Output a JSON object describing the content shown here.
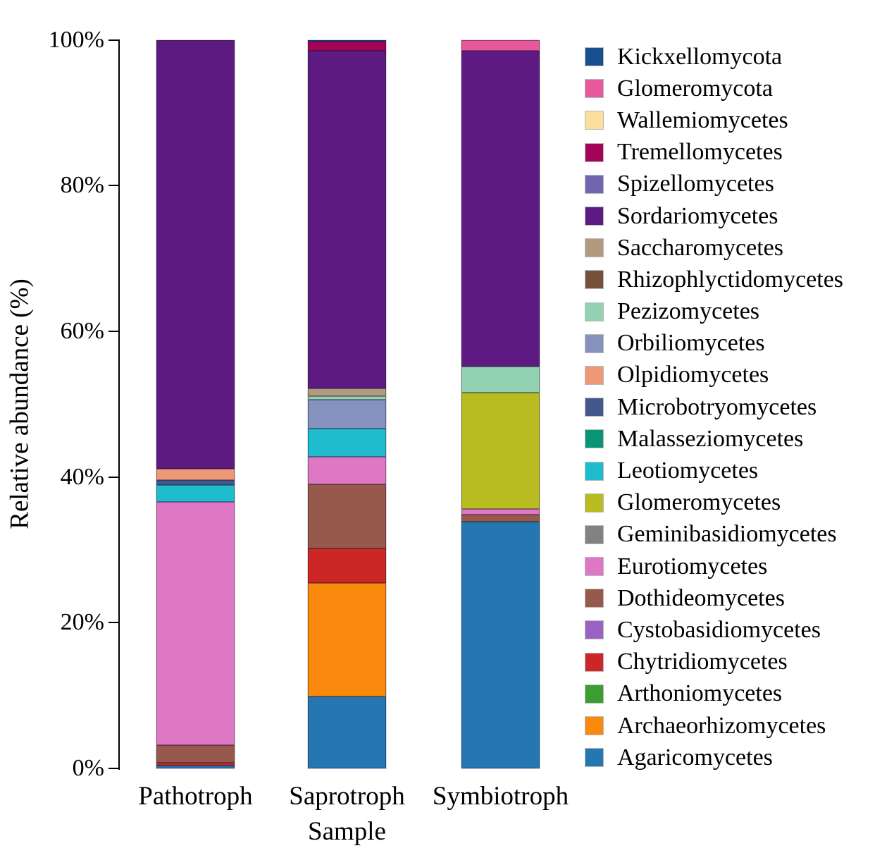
{
  "figure": {
    "y_axis_title": "Relative abundance (%)",
    "x_axis_title": "Sample"
  },
  "chart_data": {
    "type": "bar",
    "subtype": "stacked-percentage",
    "title": "",
    "xlabel": "Sample",
    "ylabel": "Relative abundance (%)",
    "ylim": [
      0,
      100
    ],
    "grid": false,
    "legend_position": "right",
    "y_ticks": [
      {
        "value": 0,
        "label": "0%"
      },
      {
        "value": 20,
        "label": "20%"
      },
      {
        "value": 40,
        "label": "40%"
      },
      {
        "value": 60,
        "label": "60%"
      },
      {
        "value": 80,
        "label": "80%"
      },
      {
        "value": 100,
        "label": "100%"
      }
    ],
    "categories": [
      "Pathotroph",
      "Saprotroph",
      "Symbiotroph"
    ],
    "stack_order_note": "series listed bottom-to-top of each stacked bar; legend shows reverse order (top-to-bottom)",
    "series": [
      {
        "name": "Agaricomycetes",
        "color": "#2577b2",
        "values": [
          0.4,
          9.9,
          33.9
        ]
      },
      {
        "name": "Archaeorhizomycetes",
        "color": "#f98a0d",
        "values": [
          0,
          15.6,
          0
        ]
      },
      {
        "name": "Arthoniomycetes",
        "color": "#3a9e33",
        "values": [
          0,
          0,
          0
        ]
      },
      {
        "name": "Chytridiomycetes",
        "color": "#cd2627",
        "values": [
          0.35,
          4.7,
          0
        ]
      },
      {
        "name": "Cystobasidiomycetes",
        "color": "#9a63c3",
        "values": [
          0,
          0,
          0
        ]
      },
      {
        "name": "Dothideomycetes",
        "color": "#96594b",
        "values": [
          2.4,
          8.8,
          0.9
        ]
      },
      {
        "name": "Eurotiomycetes",
        "color": "#de77c4",
        "values": [
          33.45,
          3.8,
          0.8
        ]
      },
      {
        "name": "Geminibasidiomycetes",
        "color": "#828282",
        "values": [
          0,
          0,
          0
        ]
      },
      {
        "name": "Glomeromycetes",
        "color": "#b8bc21",
        "values": [
          0,
          0,
          16.0
        ]
      },
      {
        "name": "Leotiomycetes",
        "color": "#1fbcce",
        "values": [
          2.3,
          3.9,
          0
        ]
      },
      {
        "name": "Malasseziomycetes",
        "color": "#0a9477",
        "values": [
          0,
          0,
          0
        ]
      },
      {
        "name": "Microbotryomycetes",
        "color": "#44588e",
        "values": [
          0.7,
          0,
          0
        ]
      },
      {
        "name": "Olpidiomycetes",
        "color": "#ef9878",
        "values": [
          1.5,
          0,
          0
        ]
      },
      {
        "name": "Orbiliomycetes",
        "color": "#8492bd",
        "values": [
          0,
          3.9,
          0
        ]
      },
      {
        "name": "Pezizomycetes",
        "color": "#93d2b0",
        "values": [
          0,
          0.5,
          3.6
        ]
      },
      {
        "name": "Rhizophlyctidomycetes",
        "color": "#74513a",
        "values": [
          0,
          0,
          0
        ]
      },
      {
        "name": "Saccharomycetes",
        "color": "#b19a80",
        "values": [
          0,
          1.1,
          0
        ]
      },
      {
        "name": "Sordariomycetes",
        "color": "#5c1a82",
        "values": [
          58.9,
          46.3,
          43.3
        ]
      },
      {
        "name": "Spizellomycetes",
        "color": "#6f66af",
        "values": [
          0,
          0,
          0
        ]
      },
      {
        "name": "Tremellomycetes",
        "color": "#a30458",
        "values": [
          0,
          1.3,
          0
        ]
      },
      {
        "name": "Wallemiomycetes",
        "color": "#fbdf9d",
        "values": [
          0,
          0,
          0
        ]
      },
      {
        "name": "Glomeromycota",
        "color": "#e8589b",
        "values": [
          0,
          0,
          1.5
        ]
      },
      {
        "name": "Kickxellomycota",
        "color": "#17508f",
        "values": [
          0,
          0.2,
          0
        ]
      }
    ]
  }
}
